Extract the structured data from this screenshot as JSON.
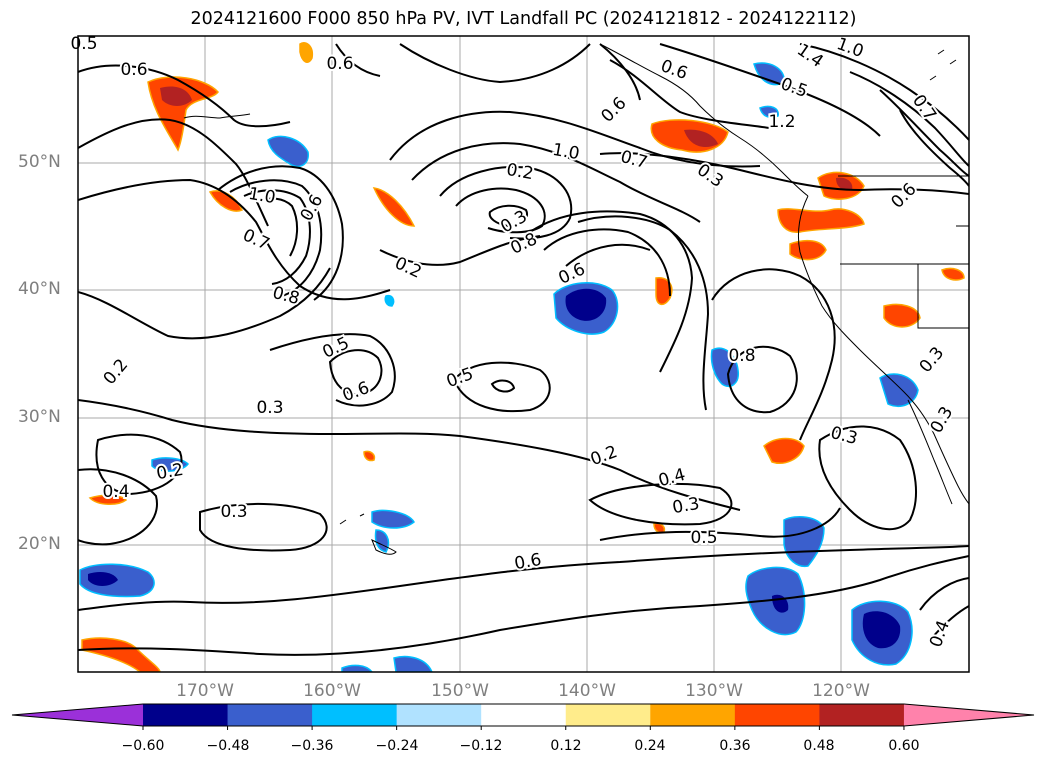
{
  "title": "2024121600 F000 850 hPa PV, IVT Landfall PC (2024121812 - 2024122112)",
  "lat_labels": [
    "50°N",
    "40°N",
    "30°N",
    "20°N"
  ],
  "lon_labels": [
    "170°W",
    "160°W",
    "150°W",
    "140°W",
    "130°W",
    "120°W"
  ],
  "colorbar": {
    "ticks": [
      "−0.60",
      "−0.48",
      "−0.36",
      "−0.24",
      "−0.12",
      "0.12",
      "0.24",
      "0.36",
      "0.48",
      "0.60"
    ],
    "colors": [
      "#9b30d9",
      "#00008b",
      "#3a5fcd",
      "#00bfff",
      "#b0e2ff",
      "#ffffff",
      "#ffec8b",
      "#ffa500",
      "#ff4500",
      "#b22222",
      "#ff82ab"
    ]
  },
  "contour_labels": [
    "0.5",
    "0.6",
    "0.6",
    "1.0",
    "0.7",
    "0.6",
    "0.8",
    "0.2",
    "0.5",
    "0.6",
    "0.2",
    "0.3",
    "0.2",
    "0.3",
    "0.8",
    "1.0",
    "0.7",
    "0.6",
    "0.5",
    "0.2",
    "0.4",
    "0.3",
    "0.5",
    "0.6",
    "0.4",
    "0.2",
    "0.3",
    "0.6",
    "0.6",
    "0.8",
    "0.5",
    "1.2",
    "1.4",
    "1.0",
    "0.7",
    "0.3",
    "0.6",
    "0.3",
    "0.3",
    "0.4",
    "0.3"
  ]
}
